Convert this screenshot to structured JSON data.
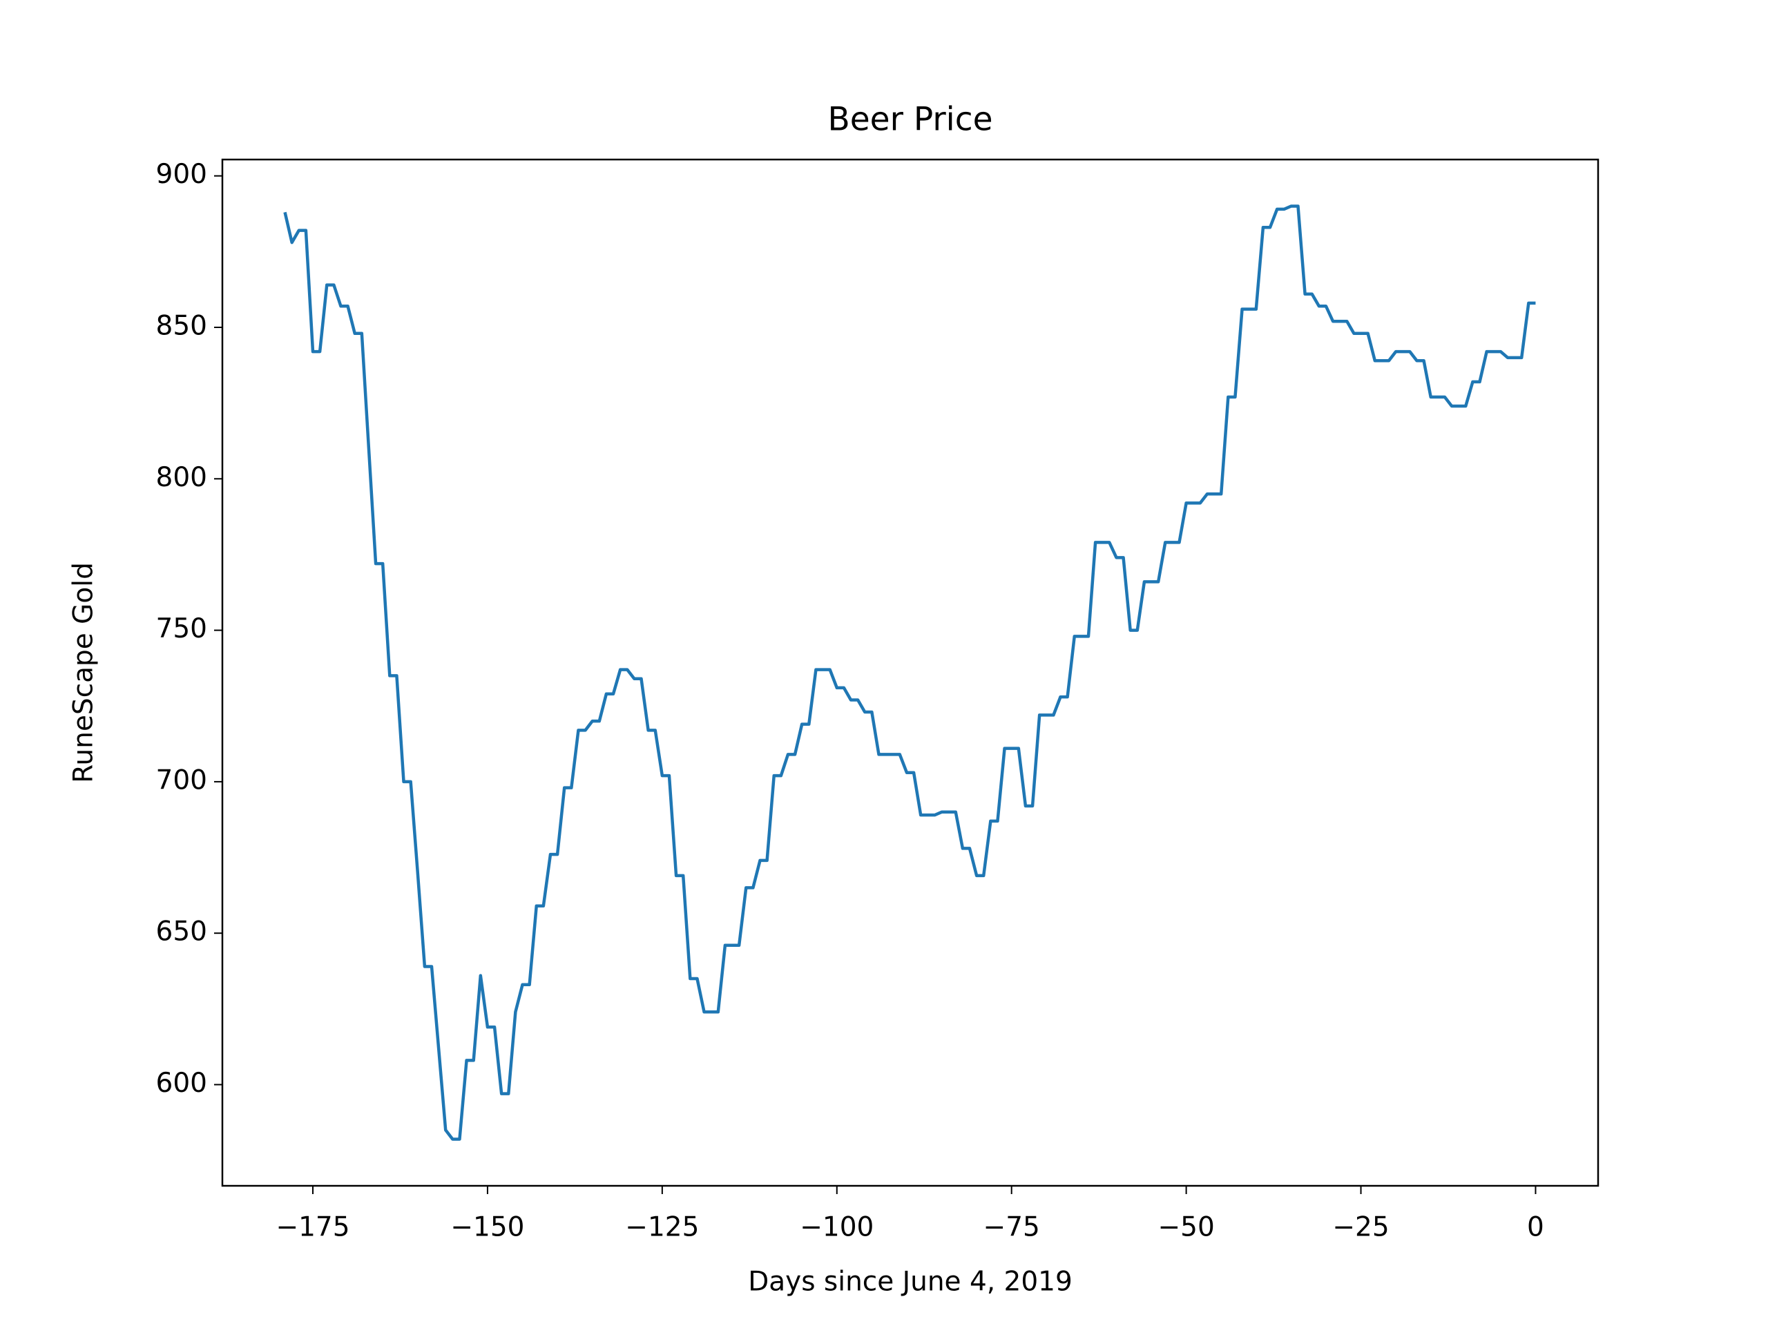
{
  "chart_data": {
    "type": "line",
    "title": "Beer Price",
    "x_label": "Days since June 4, 2019",
    "y_label": "RuneScape Gold",
    "x": [
      -179,
      -178,
      -177,
      -176,
      -175,
      -174,
      -173,
      -172,
      -171,
      -170,
      -169,
      -168,
      -167,
      -166,
      -165,
      -164,
      -163,
      -162,
      -161,
      -160,
      -159,
      -158,
      -157,
      -156,
      -155,
      -154,
      -153,
      -152,
      -151,
      -150,
      -149,
      -148,
      -147,
      -146,
      -145,
      -144,
      -143,
      -142,
      -141,
      -140,
      -139,
      -138,
      -137,
      -136,
      -135,
      -134,
      -133,
      -132,
      -131,
      -130,
      -129,
      -128,
      -127,
      -126,
      -125,
      -124,
      -123,
      -122,
      -121,
      -120,
      -119,
      -118,
      -117,
      -116,
      -115,
      -114,
      -113,
      -112,
      -111,
      -110,
      -109,
      -108,
      -107,
      -106,
      -105,
      -104,
      -103,
      -102,
      -101,
      -100,
      -99,
      -98,
      -97,
      -96,
      -95,
      -94,
      -93,
      -92,
      -91,
      -90,
      -89,
      -88,
      -87,
      -86,
      -85,
      -84,
      -83,
      -82,
      -81,
      -80,
      -79,
      -78,
      -77,
      -76,
      -75,
      -74,
      -73,
      -72,
      -71,
      -70,
      -69,
      -68,
      -67,
      -66,
      -65,
      -64,
      -63,
      -62,
      -61,
      -60,
      -59,
      -58,
      -57,
      -56,
      -55,
      -54,
      -53,
      -52,
      -51,
      -50,
      -49,
      -48,
      -47,
      -46,
      -45,
      -44,
      -43,
      -42,
      -41,
      -40,
      -39,
      -38,
      -37,
      -36,
      -35,
      -34,
      -33,
      -32,
      -31,
      -30,
      -29,
      -28,
      -27,
      -26,
      -25,
      -24,
      -23,
      -22,
      -21,
      -20,
      -19,
      -18,
      -17,
      -16,
      -15,
      -14,
      -13,
      -12,
      -11,
      -10,
      -9,
      -8,
      -7,
      -6,
      -5,
      -4,
      -3,
      -2,
      -1,
      0
    ],
    "series": [
      {
        "color": "#1f77b4",
        "values": [
          888,
          878,
          882,
          882,
          842,
          842,
          864,
          864,
          857,
          857,
          848,
          848,
          810,
          772,
          772,
          735,
          735,
          700,
          700,
          670,
          639,
          639,
          612,
          585,
          582,
          582,
          608,
          608,
          636,
          619,
          619,
          597,
          597,
          624,
          633,
          633,
          659,
          659,
          676,
          676,
          698,
          698,
          717,
          717,
          720,
          720,
          729,
          729,
          737,
          737,
          734,
          734,
          717,
          717,
          702,
          702,
          669,
          669,
          635,
          635,
          624,
          624,
          624,
          646,
          646,
          646,
          665,
          665,
          674,
          674,
          702,
          702,
          709,
          709,
          719,
          719,
          737,
          737,
          737,
          731,
          731,
          727,
          727,
          723,
          723,
          709,
          709,
          709,
          709,
          703,
          703,
          689,
          689,
          689,
          690,
          690,
          690,
          678,
          678,
          669,
          669,
          687,
          687,
          711,
          711,
          711,
          692,
          692,
          722,
          722,
          722,
          728,
          728,
          748,
          748,
          748,
          779,
          779,
          779,
          774,
          774,
          750,
          750,
          766,
          766,
          766,
          779,
          779,
          779,
          792,
          792,
          792,
          795,
          795,
          795,
          827,
          827,
          856,
          856,
          856,
          883,
          883,
          889,
          889,
          890,
          890,
          861,
          861,
          857,
          857,
          852,
          852,
          852,
          848,
          848,
          848,
          839,
          839,
          839,
          842,
          842,
          842,
          839,
          839,
          827,
          827,
          827,
          824,
          824,
          824,
          832,
          832,
          842,
          842,
          842,
          840,
          840,
          840,
          858,
          858
        ]
      }
    ],
    "xlim": [
      -187.95,
      8.95
    ],
    "ylim": [
      566.6,
      905.4
    ],
    "xticks": [
      {
        "value": -175,
        "label": "−175"
      },
      {
        "value": -150,
        "label": "−150"
      },
      {
        "value": -125,
        "label": "−125"
      },
      {
        "value": -100,
        "label": "−100"
      },
      {
        "value": -75,
        "label": "−75"
      },
      {
        "value": -50,
        "label": "−50"
      },
      {
        "value": -25,
        "label": "−25"
      },
      0
    ],
    "yticks": [
      600,
      650,
      700,
      750,
      800,
      850,
      900
    ],
    "grid": false
  }
}
